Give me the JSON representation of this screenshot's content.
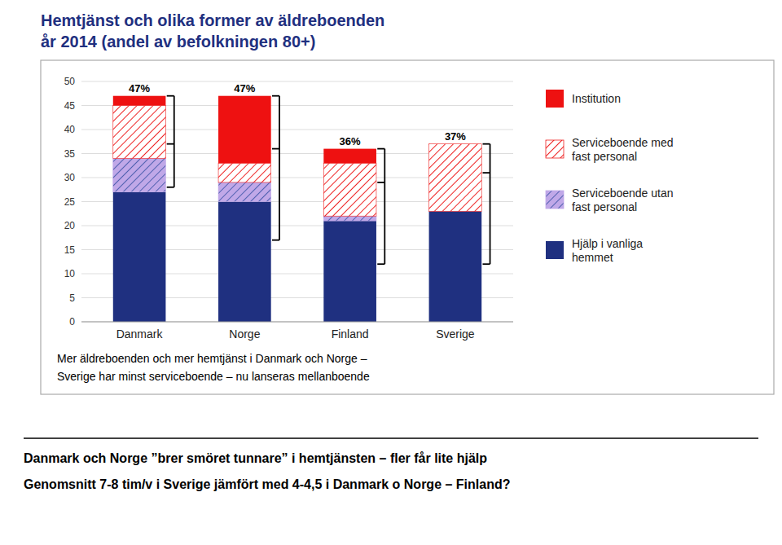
{
  "chart_data": {
    "type": "bar",
    "stacked": true,
    "title": "Hemtjänst och olika former av äldreboenden",
    "subtitle": "år 2014  (andel av befolkningen 80+)",
    "categories": [
      "Danmark",
      "Norge",
      "Finland",
      "Sverige"
    ],
    "series": [
      {
        "name": "Hjälp i vanliga\nhemmet",
        "color": "#1F3080",
        "values": [
          27,
          25,
          21,
          23
        ]
      },
      {
        "name": "Serviceboende utan\nfast personal",
        "color": "#C0A8E8",
        "values": [
          7,
          4,
          1,
          0
        ]
      },
      {
        "name": "Serviceboende med\nfast personal",
        "color": "#EE2222",
        "values": [
          11,
          4,
          11,
          14
        ]
      },
      {
        "name": "Institution",
        "color": "#EE1111",
        "values": [
          2,
          14,
          3,
          0
        ]
      }
    ],
    "totals": [
      47,
      47,
      36,
      37
    ],
    "totals_labels": [
      "47%",
      "47%",
      "36%",
      "37%"
    ],
    "brackets": [
      {
        "top": 47,
        "mid": 37,
        "bot": 28
      },
      {
        "top": 47,
        "mid": 36,
        "bot": 17
      },
      {
        "top": 36,
        "mid": 29,
        "bot": 12
      },
      {
        "top": 37,
        "mid": 31,
        "bot": 12
      }
    ],
    "ylim": [
      0,
      50
    ],
    "yticks": [
      0,
      5,
      10,
      15,
      20,
      25,
      30,
      35,
      40,
      45,
      50
    ],
    "grid": true,
    "legend": "right",
    "footnotes": [
      "Mer äldreboenden och mer hemtjänst i Danmark och Norge –",
      "Sverige har minst serviceboende – nu lanseras mellanboende"
    ],
    "bottom_texts": [
      "Danmark och Norge ”brer smöret tunnare” i hemtjänsten – fler får lite hjälp",
      "Genomsnitt 7-8 tim/v i Sverige jämfört med 4-4,5 i Danmark o Norge – Finland?"
    ]
  }
}
